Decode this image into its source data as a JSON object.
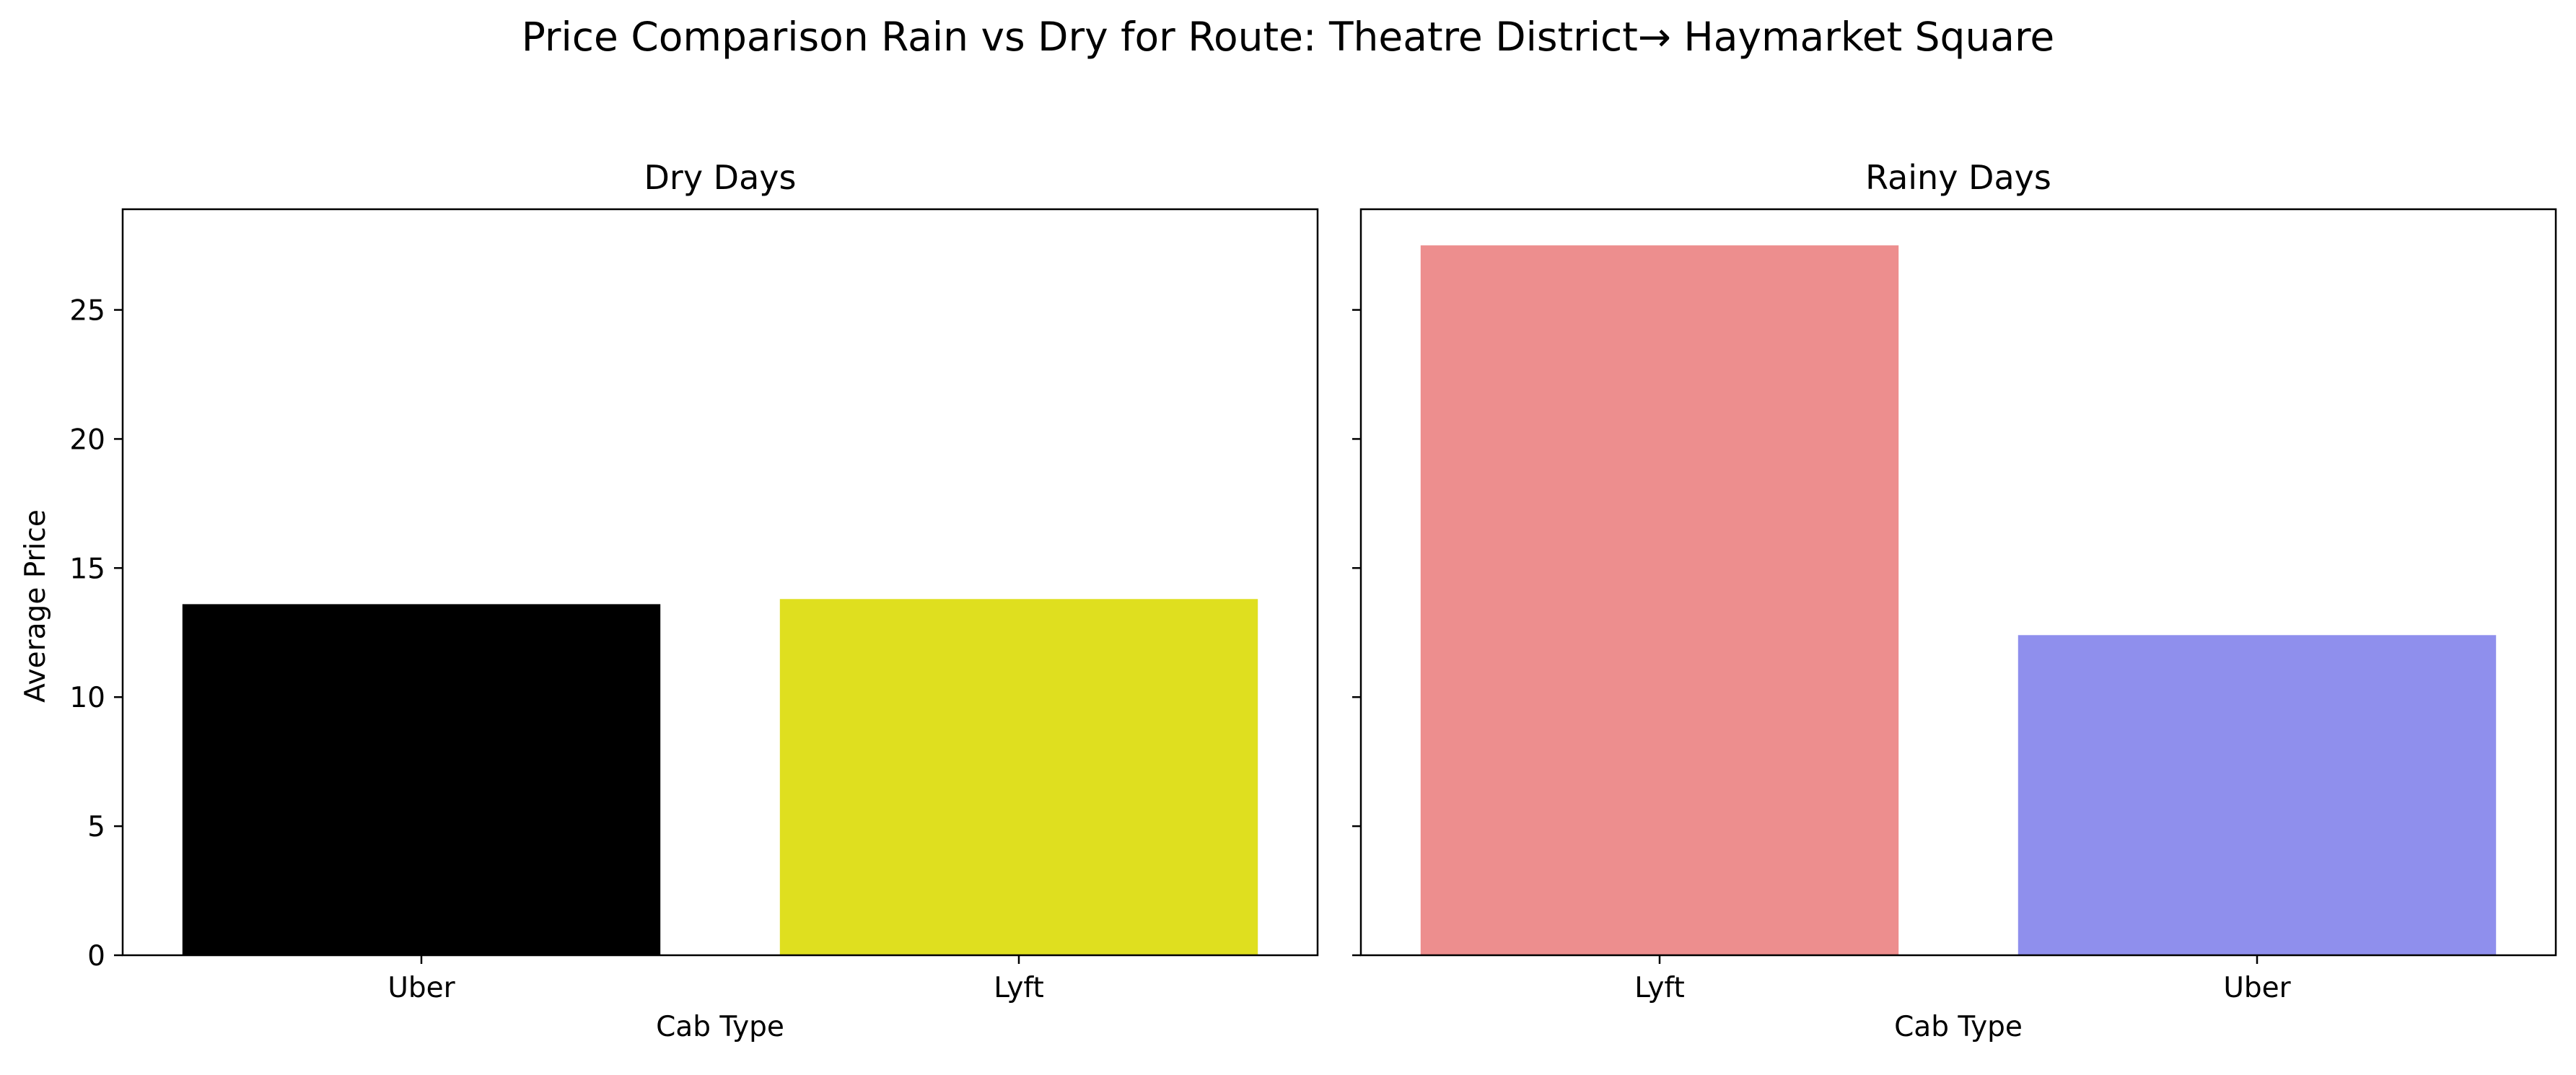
{
  "figure": {
    "suptitle": "Price Comparison Rain vs Dry for Route: Theatre District→ Haymarket Square",
    "ylabel": "Average Price",
    "yticks": [
      "0",
      "5",
      "10",
      "15",
      "20",
      "25"
    ]
  },
  "chart_data": [
    {
      "type": "bar",
      "title": "Dry Days",
      "xlabel": "Cab Type",
      "ylabel": "Average Price",
      "categories": [
        "Uber",
        "Lyft"
      ],
      "values": [
        13.6,
        13.8
      ],
      "colors": [
        "#000000",
        "#dfdf1f"
      ],
      "ylim": [
        0,
        28.9
      ],
      "grid": false
    },
    {
      "type": "bar",
      "title": "Rainy Days",
      "xlabel": "Cab Type",
      "ylabel": "",
      "categories": [
        "Lyft",
        "Uber"
      ],
      "values": [
        27.5,
        12.4
      ],
      "colors": [
        "#ed8e8e",
        "#8f8fed"
      ],
      "ylim": [
        0,
        28.9
      ],
      "grid": false
    }
  ]
}
